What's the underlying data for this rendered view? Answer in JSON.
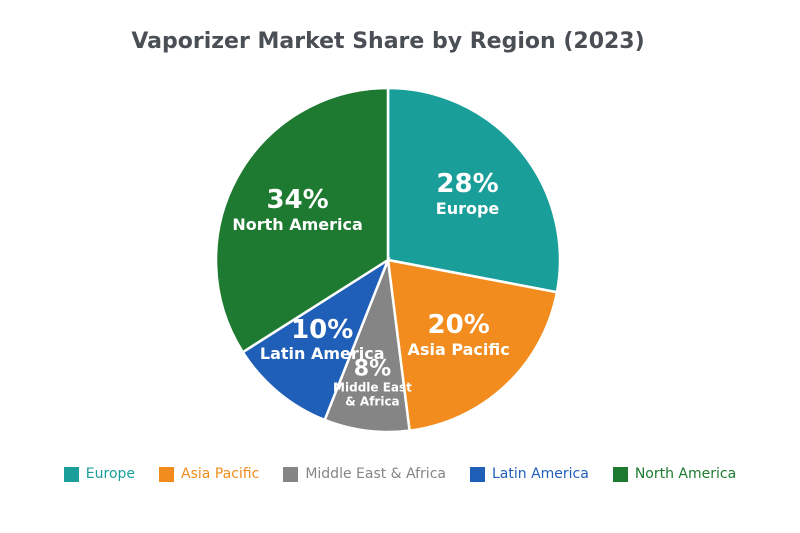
{
  "chart_data": {
    "type": "pie",
    "title": "Vaporizer Market Share by Region (2023)",
    "categories": [
      "Europe",
      "Asia Pacific",
      "Middle East & Africa",
      "Latin America",
      "North America"
    ],
    "values": [
      28,
      20,
      8,
      10,
      34
    ],
    "value_labels": [
      "28%",
      "20%",
      "8%",
      "10%",
      "34%"
    ],
    "colors": [
      "#1a9e9a",
      "#f28c1e",
      "#858585",
      "#1f5fb8",
      "#1e7a30"
    ],
    "legend": "bottom"
  }
}
